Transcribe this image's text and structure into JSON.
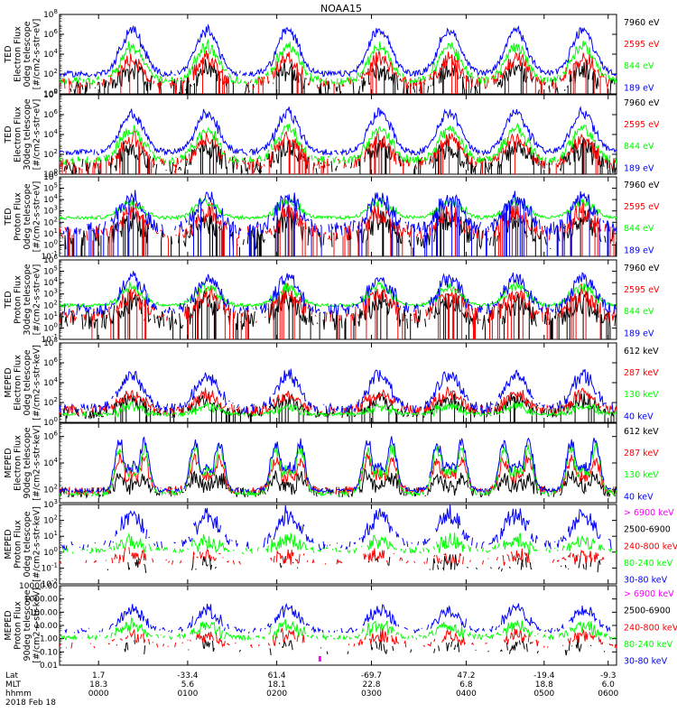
{
  "title": "NOAA15",
  "colors": {
    "black": "#000000",
    "red": "#ff0000",
    "green": "#00ff00",
    "blue": "#0000ff",
    "magenta": "#ff00ff"
  },
  "chart_data": [
    {
      "type": "line",
      "instrument": "TED",
      "ylabel": [
        "TED",
        "Electron Flux",
        "0deg telescope",
        "[#/cm2-s-str-eV]"
      ],
      "yticks": [
        "10^0",
        "10^2",
        "10^4",
        "10^6",
        "10^8"
      ],
      "ylog": true,
      "ylim_exp": [
        0,
        8
      ],
      "series": [
        {
          "name": "7960 eV",
          "color": "#000000",
          "baseline": 0.6,
          "peak": 2.4,
          "spread": 0.9,
          "sparse": 0.5
        },
        {
          "name": "2595 eV",
          "color": "#ff0000",
          "baseline": 1.0,
          "peak": 3.5,
          "spread": 0.6,
          "sparse": 0.6
        },
        {
          "name": "844 eV",
          "color": "#00ff00",
          "baseline": 1.3,
          "peak": 4.8,
          "spread": 0.4,
          "sparse": 0.8
        },
        {
          "name": "189 eV",
          "color": "#0000ff",
          "baseline": 2.0,
          "peak": 6.4,
          "spread": 0.3,
          "sparse": 0.95
        }
      ]
    },
    {
      "type": "line",
      "instrument": "TED",
      "ylabel": [
        "TED",
        "Electron Flux",
        "30deg telescope",
        "[#/cm2-s-str-eV]"
      ],
      "yticks": [
        "10^0",
        "10^2",
        "10^4",
        "10^6",
        "10^8"
      ],
      "ylog": true,
      "ylim_exp": [
        0,
        8
      ],
      "series": [
        {
          "name": "7960 eV",
          "color": "#000000",
          "baseline": 0.8,
          "peak": 2.6,
          "spread": 0.9,
          "sparse": 0.55
        },
        {
          "name": "2595 eV",
          "color": "#ff0000",
          "baseline": 1.0,
          "peak": 3.6,
          "spread": 0.6,
          "sparse": 0.65
        },
        {
          "name": "844 eV",
          "color": "#00ff00",
          "baseline": 1.4,
          "peak": 4.6,
          "spread": 0.4,
          "sparse": 0.8
        },
        {
          "name": "189 eV",
          "color": "#0000ff",
          "baseline": 2.2,
          "peak": 6.2,
          "spread": 0.3,
          "sparse": 0.95
        }
      ]
    },
    {
      "type": "line",
      "instrument": "TED",
      "ylabel": [
        "TED",
        "Proton Flux",
        "0deg telescope",
        "[#/cm2-s-str-eV]"
      ],
      "yticks": [
        "10^-1",
        "10^0",
        "10^1",
        "10^2",
        "10^3",
        "10^4",
        "10^5",
        "10^6"
      ],
      "ylog": true,
      "ylim_exp": [
        -1,
        6
      ],
      "series": [
        {
          "name": "7960 eV",
          "color": "#000000",
          "baseline": 0.5,
          "peak": 2.2,
          "spread": 0.9,
          "sparse": 0.55
        },
        {
          "name": "2595 eV",
          "color": "#ff0000",
          "baseline": 1.0,
          "peak": 2.9,
          "spread": 0.7,
          "sparse": 0.6
        },
        {
          "name": "844 eV",
          "color": "#00ff00",
          "baseline": 2.4,
          "peak": 3.8,
          "spread": 0.15,
          "sparse": 1.0
        },
        {
          "name": "189 eV",
          "color": "#0000ff",
          "baseline": 1.4,
          "peak": 4.2,
          "spread": 0.6,
          "sparse": 0.7
        }
      ]
    },
    {
      "type": "line",
      "instrument": "TED",
      "ylabel": [
        "TED",
        "Proton Flux",
        "30deg telescope",
        "[#/cm2-s-str-eV]"
      ],
      "yticks": [
        "10^-1",
        "10^0",
        "10^1",
        "10^2",
        "10^3",
        "10^4",
        "10^5",
        "10^6"
      ],
      "ylog": true,
      "ylim_exp": [
        -1,
        6
      ],
      "series": [
        {
          "name": "7960 eV",
          "color": "#000000",
          "baseline": 0.7,
          "peak": 2.3,
          "spread": 0.9,
          "sparse": 0.6
        },
        {
          "name": "2595 eV",
          "color": "#ff0000",
          "baseline": 1.1,
          "peak": 3.0,
          "spread": 0.7,
          "sparse": 0.6
        },
        {
          "name": "844 eV",
          "color": "#00ff00",
          "baseline": 2.0,
          "peak": 3.6,
          "spread": 0.15,
          "sparse": 1.0
        },
        {
          "name": "189 eV",
          "color": "#0000ff",
          "baseline": 1.6,
          "peak": 4.4,
          "spread": 0.5,
          "sparse": 0.7
        }
      ]
    },
    {
      "type": "line",
      "instrument": "MEPED",
      "ylabel": [
        "MEPED",
        "Electron Flux",
        "0deg telescope",
        "[#/cm2-s-str-keV]"
      ],
      "yticks": [
        "10^0",
        "10^2",
        "10^4",
        "10^6",
        "10^8"
      ],
      "ylog": true,
      "ylim_exp": [
        0,
        8
      ],
      "series": [
        {
          "name": "612 keV",
          "color": "#000000",
          "baseline": 1.0,
          "peak": 2.2,
          "spread": 0.6,
          "sparse": 0.7
        },
        {
          "name": "287 keV",
          "color": "#ff0000",
          "baseline": 1.2,
          "peak": 2.8,
          "spread": 0.5,
          "sparse": 0.75
        },
        {
          "name": "130 keV",
          "color": "#00ff00",
          "baseline": 0.8,
          "peak": 1.6,
          "spread": 0.2,
          "sparse": 0.85
        },
        {
          "name": "40 keV",
          "color": "#0000ff",
          "baseline": 1.4,
          "peak": 4.8,
          "spread": 0.5,
          "sparse": 0.7
        }
      ]
    },
    {
      "type": "line",
      "instrument": "MEPED",
      "ylabel": [
        "MEPED",
        "Electron Flux",
        "90deg telescope",
        "[#/cm2-s-str-keV]"
      ],
      "yticks": [
        "10^2",
        "10^4",
        "10^6"
      ],
      "ylog": true,
      "ylim_exp": [
        1,
        7
      ],
      "series": [
        {
          "name": "612 keV",
          "color": "#000000",
          "baseline": 1.8,
          "peak": 2.9,
          "spread": 0.4,
          "sparse": 0.7
        },
        {
          "name": "287 keV",
          "color": "#ff0000",
          "baseline": 1.9,
          "peak": 4.3,
          "spread": 0.3,
          "sparse": 0.8
        },
        {
          "name": "130 keV",
          "color": "#00ff00",
          "baseline": 1.7,
          "peak": 5.1,
          "spread": 0.2,
          "sparse": 0.85
        },
        {
          "name": "40 keV",
          "color": "#0000ff",
          "baseline": 1.9,
          "peak": 5.6,
          "spread": 0.15,
          "sparse": 0.85
        }
      ]
    },
    {
      "type": "line",
      "instrument": "MEPED",
      "ylabel": [
        "MEPED",
        "Proton Flux",
        "0deg telescope",
        "[#/cm2-s-str-keV]"
      ],
      "yticks": [
        "10^-2",
        "10^-1",
        "10^0",
        "10^1",
        "10^2",
        "10^3"
      ],
      "ylog": true,
      "ylim_exp": [
        -2,
        3
      ],
      "series": [
        {
          "name": "> 6900 keV",
          "color": "#ff00ff",
          "baseline": -3,
          "peak": -3,
          "spread": 0,
          "sparse": 0
        },
        {
          "name": "2500-6900",
          "color": "#000000",
          "baseline": -1.0,
          "peak": -0.6,
          "spread": 0.2,
          "sparse": 0.08
        },
        {
          "name": "240-800 keV",
          "color": "#ff0000",
          "baseline": -0.6,
          "peak": -0.2,
          "spread": 0.2,
          "sparse": 0.35
        },
        {
          "name": "80-240 keV",
          "color": "#00ff00",
          "baseline": 0.1,
          "peak": 0.7,
          "spread": 0.2,
          "sparse": 0.6
        },
        {
          "name": "30-80 keV",
          "color": "#0000ff",
          "baseline": 0.4,
          "peak": 2.4,
          "spread": 0.3,
          "sparse": 0.55
        }
      ]
    },
    {
      "type": "line",
      "instrument": "MEPED",
      "ylabel": [
        "MEPED",
        "Proton Flux",
        "90deg telescope",
        "[#/cm2-s-str-keV]"
      ],
      "yticks": [
        "0.01",
        "0.10",
        "1.00",
        "10.00",
        "100.00",
        "1000.00",
        "10000.00"
      ],
      "ylog": true,
      "ylim_exp": [
        -2,
        4
      ],
      "series": [
        {
          "name": "> 6900 keV",
          "color": "#ff00ff",
          "baseline": -3,
          "peak": -3,
          "spread": 0,
          "sparse": 0
        },
        {
          "name": "2500-6900",
          "color": "#000000",
          "baseline": -1.0,
          "peak": -0.5,
          "spread": 0.2,
          "sparse": 0.08
        },
        {
          "name": "240-800 keV",
          "color": "#ff0000",
          "baseline": -0.5,
          "peak": 0.3,
          "spread": 0.25,
          "sparse": 0.4
        },
        {
          "name": "80-240 keV",
          "color": "#00ff00",
          "baseline": 0.1,
          "peak": 1.0,
          "spread": 0.2,
          "sparse": 0.7
        },
        {
          "name": "30-80 keV",
          "color": "#0000ff",
          "baseline": 0.6,
          "peak": 2.2,
          "spread": 0.2,
          "sparse": 0.6
        }
      ]
    }
  ],
  "passes": [
    0.13,
    0.265,
    0.41,
    0.575,
    0.7,
    0.82,
    0.94
  ],
  "x_axis": {
    "rows": [
      {
        "label": "Lat",
        "values": [
          "1.7",
          "-33.4",
          "61.4",
          "-69.7",
          "47.2",
          "-19.4",
          "-9.3"
        ]
      },
      {
        "label": "MLT",
        "values": [
          "18.3",
          "5.6",
          "18.1",
          "22.8",
          "6.8",
          "18.8",
          "6.0"
        ]
      },
      {
        "label": "hhmm",
        "values": [
          "0000",
          "0100",
          "0200",
          "0300",
          "0400",
          "0500",
          "0600"
        ]
      }
    ],
    "date": "2018 Feb 18"
  }
}
